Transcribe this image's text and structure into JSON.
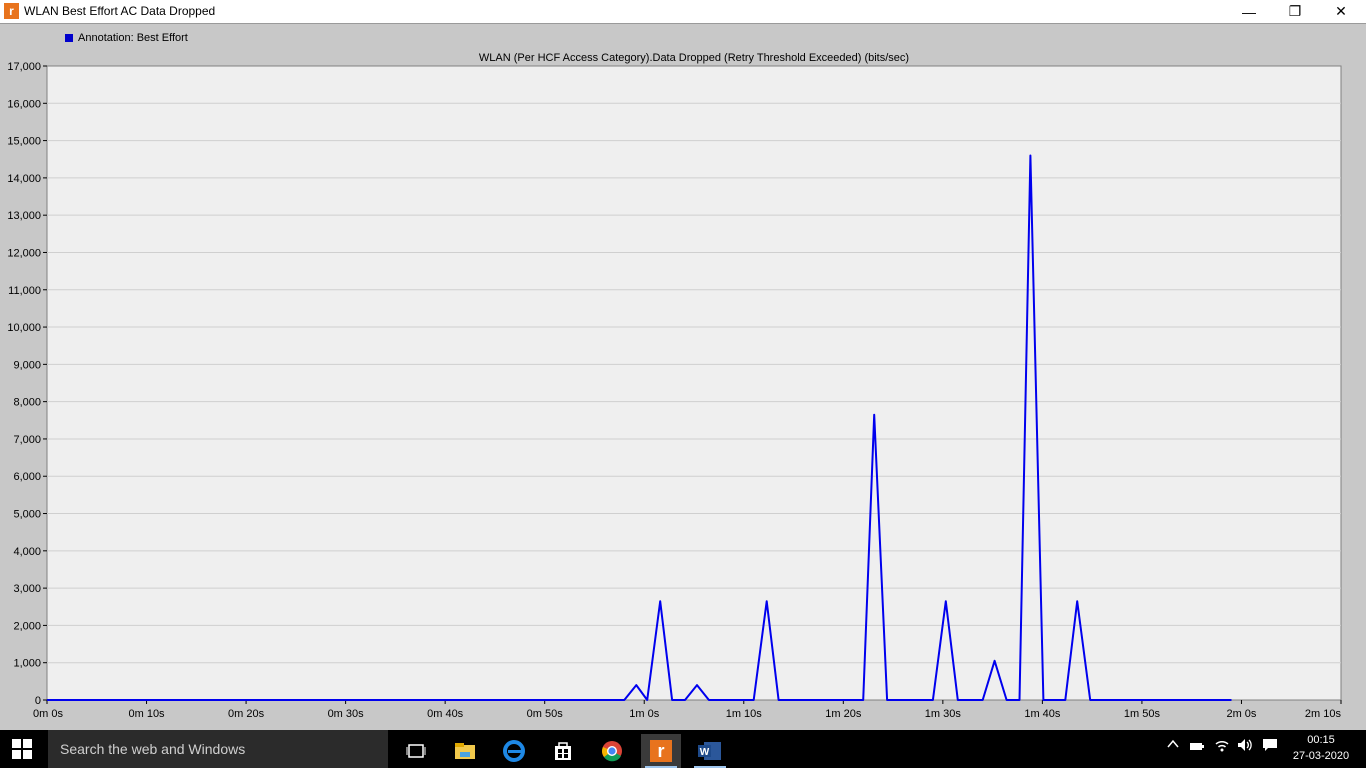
{
  "window": {
    "app_icon_letter": "r",
    "title": "WLAN Best Effort AC Data Dropped",
    "minimize_glyph": "—",
    "maximize_glyph": "❐",
    "close_glyph": "✕"
  },
  "chart_data": {
    "type": "line",
    "title": "WLAN (Per HCF Access Category).Data Dropped (Retry Threshold Exceeded) (bits/sec)",
    "xlabel": "",
    "ylabel": "",
    "xlim": [
      0,
      130
    ],
    "ylim": [
      0,
      17000
    ],
    "yticks": [
      0,
      1000,
      2000,
      3000,
      4000,
      5000,
      6000,
      7000,
      8000,
      9000,
      10000,
      11000,
      12000,
      13000,
      14000,
      15000,
      16000,
      17000
    ],
    "ytick_labels": [
      "0",
      "1,000",
      "2,000",
      "3,000",
      "4,000",
      "5,000",
      "6,000",
      "7,000",
      "8,000",
      "9,000",
      "10,000",
      "11,000",
      "12,000",
      "13,000",
      "14,000",
      "15,000",
      "16,000",
      "17,000"
    ],
    "xticks": [
      0,
      10,
      20,
      30,
      40,
      50,
      60,
      70,
      80,
      90,
      100,
      110,
      120,
      130
    ],
    "xtick_labels": [
      "0m 0s",
      "0m 10s",
      "0m 20s",
      "0m 30s",
      "0m 40s",
      "0m 50s",
      "1m 0s",
      "1m 10s",
      "1m 20s",
      "1m 30s",
      "1m 40s",
      "1m 50s",
      "2m 0s",
      "2m 10s"
    ],
    "grid": true,
    "legend_position": "top-left",
    "series": [
      {
        "name": "Annotation: Best Effort",
        "color": "#0000ee",
        "points": [
          [
            0,
            0
          ],
          [
            58,
            0
          ],
          [
            59.2,
            400
          ],
          [
            60.3,
            0
          ],
          [
            61.6,
            2650
          ],
          [
            62.8,
            0
          ],
          [
            64.1,
            0
          ],
          [
            65.3,
            400
          ],
          [
            66.5,
            0
          ],
          [
            71,
            0
          ],
          [
            72.3,
            2650
          ],
          [
            73.5,
            0
          ],
          [
            82,
            0
          ],
          [
            83.1,
            7650
          ],
          [
            84.4,
            0
          ],
          [
            89,
            0
          ],
          [
            90.3,
            2650
          ],
          [
            91.5,
            0
          ],
          [
            94,
            0
          ],
          [
            95.2,
            1050
          ],
          [
            96.4,
            0
          ],
          [
            97.7,
            0
          ],
          [
            98.8,
            14600
          ],
          [
            100.1,
            0
          ],
          [
            102.3,
            0
          ],
          [
            103.5,
            2650
          ],
          [
            104.8,
            0
          ],
          [
            119,
            0
          ]
        ]
      }
    ]
  },
  "taskbar": {
    "search_placeholder": "Search the web and Windows",
    "time": "00:15",
    "date": "27-03-2020",
    "icons": [
      "task-view-icon",
      "file-explorer-icon",
      "edge-icon",
      "store-icon",
      "chrome-icon",
      "riverbed-icon",
      "word-icon"
    ]
  }
}
